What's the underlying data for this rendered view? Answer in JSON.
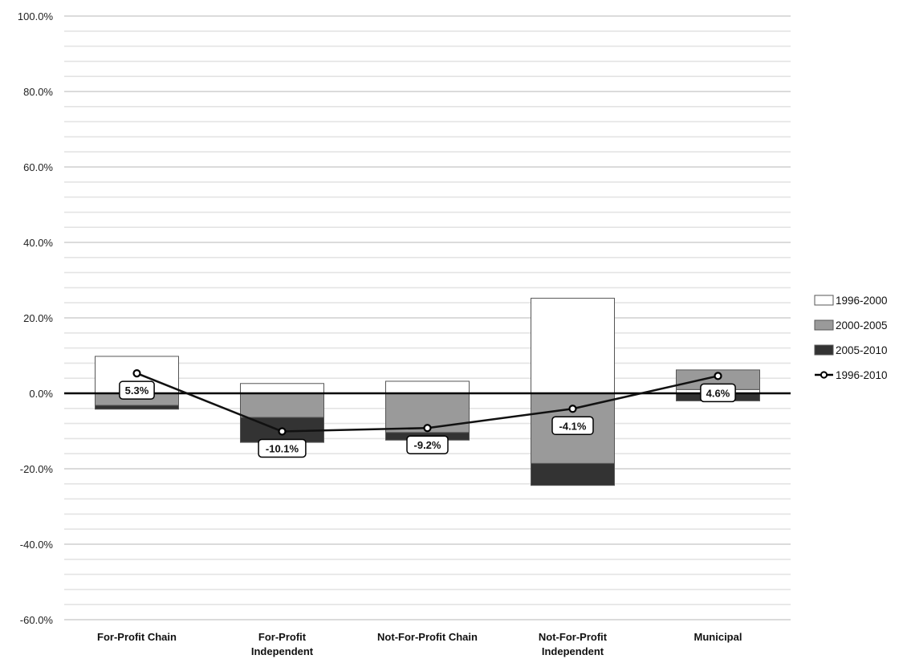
{
  "chart_data": {
    "type": "bar",
    "stacked": true,
    "categories": [
      "For-Profit Chain",
      "For-Profit Independent",
      "Not-For-Profit Chain",
      "Not-For-Profit Independent",
      "Municipal"
    ],
    "series": [
      {
        "name": "1996-2000",
        "type": "bar",
        "color": "#ffffff",
        "values": [
          9.8,
          2.6,
          3.2,
          25.2,
          1.0
        ]
      },
      {
        "name": "2000-2005",
        "type": "bar",
        "color": "#9a9a9a",
        "values": [
          -3.2,
          -6.4,
          -10.4,
          -18.6,
          5.2
        ]
      },
      {
        "name": "2005-2010",
        "type": "bar",
        "color": "#333333",
        "values": [
          -1.0,
          -6.6,
          -2.0,
          -5.8,
          -2.0
        ]
      },
      {
        "name": "1996-2010",
        "type": "line",
        "color": "#111111",
        "values": [
          5.3,
          -10.1,
          -9.2,
          -4.1,
          4.6
        ]
      }
    ],
    "data_labels": [
      "5.3%",
      "-10.1%",
      "-9.2%",
      "-4.1%",
      "4.6%"
    ],
    "yticks": [
      "100.0%",
      "80.0%",
      "60.0%",
      "40.0%",
      "20.0%",
      "0.0%",
      "-20.0%",
      "-40.0%",
      "-60.0%"
    ],
    "ylim": [
      -60,
      100
    ],
    "grid": true,
    "legend": "right",
    "xlabel": "",
    "ylabel": "",
    "title": ""
  }
}
